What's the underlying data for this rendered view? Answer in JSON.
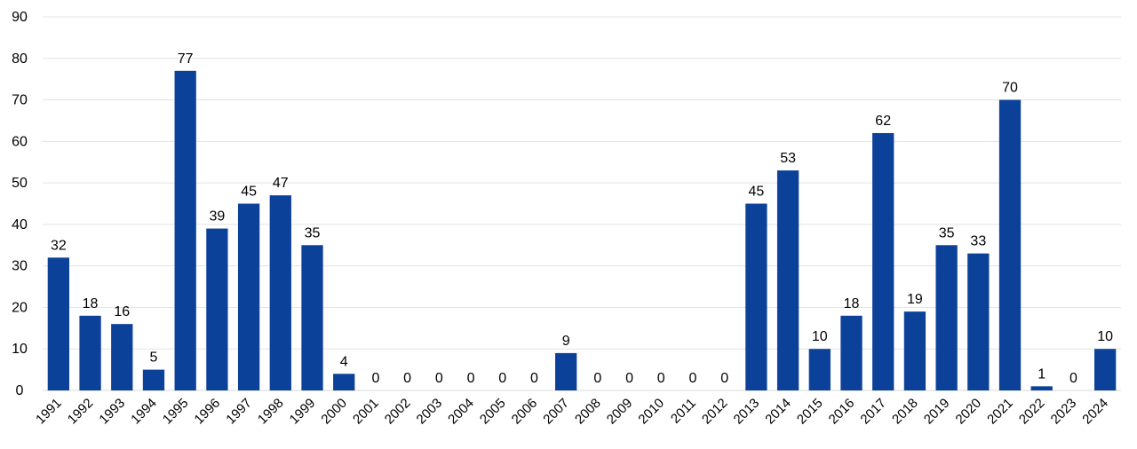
{
  "chart_data": {
    "type": "bar",
    "title": "",
    "xlabel": "",
    "ylabel": "",
    "ylim": [
      0,
      90
    ],
    "ytick_step": 10,
    "grid": true,
    "legend": "none",
    "bar_color": "#0b4199",
    "categories": [
      "1991",
      "1992",
      "1993",
      "1994",
      "1995",
      "1996",
      "1997",
      "1998",
      "1999",
      "2000",
      "2001",
      "2002",
      "2003",
      "2004",
      "2005",
      "2006",
      "2007",
      "2008",
      "2009",
      "2010",
      "2011",
      "2012",
      "2013",
      "2014",
      "2015",
      "2016",
      "2017",
      "2018",
      "2019",
      "2020",
      "2021",
      "2022",
      "2023",
      "2024"
    ],
    "values": [
      32,
      18,
      16,
      5,
      77,
      39,
      45,
      47,
      35,
      4,
      0,
      0,
      0,
      0,
      0,
      0,
      9,
      0,
      0,
      0,
      0,
      0,
      45,
      53,
      10,
      18,
      62,
      19,
      35,
      33,
      70,
      1,
      0,
      10
    ]
  }
}
